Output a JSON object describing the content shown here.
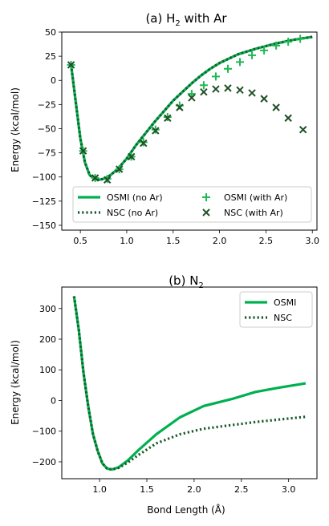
{
  "colors": {
    "osmi": "#00b050",
    "nsc": "#1a5a2a",
    "osmi_markers": "#1db954",
    "nsc_markers": "#1f4f25"
  },
  "chart_data": [
    {
      "type": "line",
      "title": "(a) H",
      "title_sub": "2",
      "title_rest": " with Ar",
      "xlabel": "",
      "ylabel": "Energy (kcal/mol)",
      "xlim": [
        0.3,
        3.05
      ],
      "ylim": [
        -155,
        50
      ],
      "xticks": [
        0.5,
        1.0,
        1.5,
        2.0,
        2.5,
        3.0
      ],
      "xtick_labels": [
        "0.5",
        "1.0",
        "1.5",
        "2.0",
        "2.5",
        "3.0"
      ],
      "yticks": [
        50,
        25,
        0,
        -25,
        -50,
        -75,
        -100,
        -125,
        -150
      ],
      "ytick_labels": [
        "50",
        "25",
        "0",
        "−25",
        "−50",
        "−75",
        "−100",
        "−125",
        "−150"
      ],
      "legend_placement": "lower-center",
      "legend_entries": [
        "OSMI (no Ar)",
        "NSC (no Ar)",
        "OSMI (with Ar)",
        "NSC (with Ar)"
      ],
      "series": [
        {
          "name": "OSMI (no Ar)",
          "style": "solid",
          "x": [
            0.4,
            0.5,
            0.55,
            0.6,
            0.65,
            0.7,
            0.75,
            0.8,
            0.9,
            1.0,
            1.1,
            1.2,
            1.3,
            1.4,
            1.5,
            1.6,
            1.7,
            1.8,
            1.9,
            2.0,
            2.2,
            2.4,
            2.6,
            2.8,
            3.0
          ],
          "y": [
            16,
            -60,
            -85,
            -98,
            -102,
            -103,
            -102,
            -100,
            -92,
            -81,
            -67,
            -55,
            -43,
            -32,
            -21,
            -12,
            -3,
            5,
            12,
            18,
            27,
            33,
            38,
            42,
            45
          ]
        },
        {
          "name": "NSC (no Ar)",
          "style": "dotted",
          "x": [
            0.4,
            0.5,
            0.55,
            0.6,
            0.65,
            0.7,
            0.75,
            0.8,
            0.9,
            1.0,
            1.1,
            1.2,
            1.3,
            1.4,
            1.5,
            1.6,
            1.7,
            1.8,
            1.9,
            2.0,
            2.2,
            2.4,
            2.6,
            2.8,
            3.0
          ],
          "y": [
            16,
            -60,
            -85,
            -98,
            -102,
            -103,
            -102,
            -100,
            -92,
            -81,
            -67,
            -55,
            -43,
            -32,
            -21,
            -12,
            -3,
            5,
            12,
            18,
            27,
            33,
            38,
            42,
            45
          ]
        },
        {
          "name": "OSMI (with Ar)",
          "style": "plus",
          "x": [
            0.4,
            0.53,
            0.66,
            0.79,
            0.92,
            1.05,
            1.18,
            1.31,
            1.44,
            1.57,
            1.7,
            1.83,
            1.96,
            2.09,
            2.22,
            2.35,
            2.48,
            2.61,
            2.74,
            2.87
          ],
          "y": [
            16,
            -73,
            -101,
            -102,
            -92,
            -79,
            -64,
            -51,
            -38,
            -26,
            -14,
            -5,
            4,
            12,
            19,
            26,
            31,
            36,
            40,
            43
          ]
        },
        {
          "name": "NSC (with Ar)",
          "style": "x",
          "x": [
            0.4,
            0.53,
            0.66,
            0.79,
            0.92,
            1.05,
            1.18,
            1.31,
            1.44,
            1.57,
            1.7,
            1.83,
            1.96,
            2.09,
            2.22,
            2.35,
            2.48,
            2.61,
            2.74,
            2.9
          ],
          "y": [
            16,
            -73,
            -101,
            -103,
            -92,
            -79,
            -65,
            -52,
            -39,
            -28,
            -18,
            -12,
            -9,
            -8,
            -10,
            -13,
            -19,
            -28,
            -39,
            -51
          ]
        }
      ]
    },
    {
      "type": "line",
      "title": "(b) N",
      "title_sub": "2",
      "title_rest": "",
      "xlabel": "Bond Length (Å)",
      "ylabel": "Energy (kcal/mol)",
      "xlim": [
        0.6,
        3.3
      ],
      "ylim": [
        -255,
        370
      ],
      "xticks": [
        1.0,
        1.5,
        2.0,
        2.5,
        3.0
      ],
      "xtick_labels": [
        "1.0",
        "1.5",
        "2.0",
        "2.5",
        "3.0"
      ],
      "yticks": [
        300,
        200,
        100,
        0,
        -100,
        -200
      ],
      "ytick_labels": [
        "300",
        "200",
        "100",
        "0",
        "−100",
        "−200"
      ],
      "legend_placement": "upper-right",
      "legend_entries": [
        "OSMI",
        "NSC"
      ],
      "series": [
        {
          "name": "OSMI",
          "style": "solid",
          "x": [
            0.73,
            0.78,
            0.83,
            0.88,
            0.93,
            0.98,
            1.03,
            1.08,
            1.13,
            1.2,
            1.3,
            1.4,
            1.6,
            1.85,
            2.1,
            2.4,
            2.65,
            2.9,
            3.18
          ],
          "y": [
            340,
            230,
            90,
            -20,
            -110,
            -165,
            -205,
            -222,
            -225,
            -218,
            -195,
            -165,
            -110,
            -55,
            -18,
            5,
            28,
            42,
            56
          ]
        },
        {
          "name": "NSC",
          "style": "dotted",
          "x": [
            0.73,
            0.78,
            0.83,
            0.88,
            0.93,
            0.98,
            1.03,
            1.08,
            1.13,
            1.2,
            1.3,
            1.4,
            1.6,
            1.85,
            2.1,
            2.4,
            2.65,
            2.9,
            3.18
          ],
          "y": [
            340,
            230,
            90,
            -20,
            -110,
            -165,
            -205,
            -222,
            -225,
            -220,
            -202,
            -180,
            -140,
            -110,
            -92,
            -80,
            -70,
            -62,
            -53
          ]
        }
      ]
    }
  ]
}
